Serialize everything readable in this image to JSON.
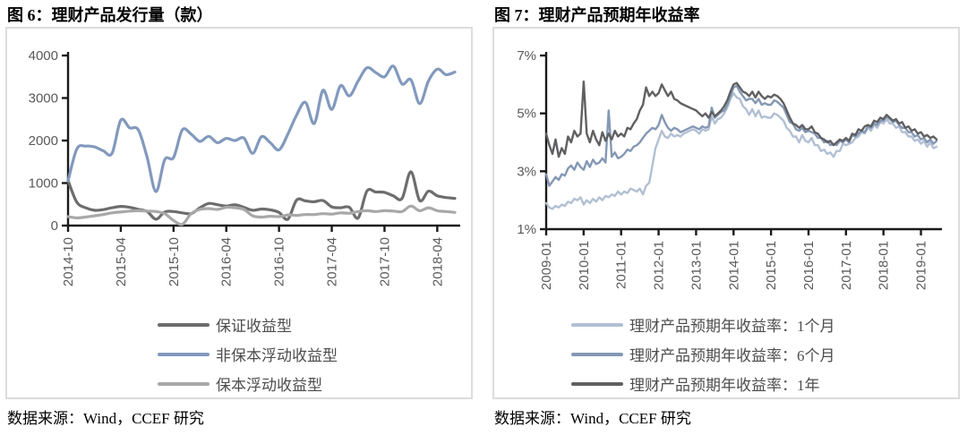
{
  "chart_data": [
    {
      "type": "line",
      "title": "图 6：理财产品发行量（款）",
      "source": "数据来源：Wind，CCEF 研究",
      "x_start": "2014-10",
      "x_tick_labels": [
        "2014-10",
        "2015-04",
        "2015-10",
        "2016-04",
        "2016-10",
        "2017-04",
        "2017-10",
        "2018-04"
      ],
      "x_tick_every": 6,
      "ylim": [
        0,
        4000
      ],
      "y_tick_values": [
        0,
        1000,
        2000,
        3000,
        4000
      ],
      "y_tick_labels": [
        "0",
        "1000",
        "2000",
        "3000",
        "4000"
      ],
      "grid": false,
      "legend_position": "bottom",
      "axis_color": "#1a1a1a",
      "tick_label_color": "#595959",
      "series": [
        {
          "name": "保证收益型",
          "color": "#6d6d6d",
          "values": [
            1060,
            550,
            420,
            360,
            375,
            420,
            450,
            430,
            380,
            330,
            150,
            320,
            330,
            300,
            280,
            420,
            520,
            490,
            460,
            490,
            430,
            360,
            390,
            370,
            310,
            150,
            600,
            580,
            560,
            590,
            440,
            420,
            430,
            180,
            810,
            790,
            780,
            700,
            640,
            1265,
            590,
            810,
            700,
            660,
            640
          ]
        },
        {
          "name": "非保本浮动收益型",
          "color": "#8299bd",
          "values": [
            1050,
            1800,
            1870,
            1850,
            1760,
            1700,
            2480,
            2300,
            2250,
            1600,
            800,
            1550,
            1600,
            2250,
            2150,
            1980,
            2100,
            1950,
            2050,
            2000,
            2060,
            1700,
            2090,
            1950,
            1780,
            2150,
            2600,
            2900,
            2400,
            3180,
            2730,
            3290,
            3050,
            3400,
            3710,
            3600,
            3500,
            3750,
            3330,
            3430,
            2870,
            3400,
            3680,
            3550,
            3610
          ]
        },
        {
          "name": "保本浮动收益型",
          "color": "#a8a8a8",
          "values": [
            210,
            180,
            200,
            230,
            260,
            300,
            320,
            340,
            350,
            340,
            330,
            280,
            120,
            30,
            280,
            380,
            400,
            380,
            430,
            420,
            380,
            230,
            200,
            220,
            210,
            250,
            240,
            260,
            260,
            280,
            270,
            300,
            290,
            330,
            350,
            330,
            350,
            340,
            330,
            460,
            350,
            420,
            350,
            330,
            310
          ]
        }
      ]
    },
    {
      "type": "line",
      "title": "图 7：理财产品预期年收益率",
      "source": "数据来源：Wind，CCEF 研究",
      "x_start": "2009-01",
      "x_tick_labels": [
        "2009-01",
        "2010-01",
        "2011-01",
        "2012-01",
        "2013-01",
        "2014-01",
        "2015-01",
        "2016-01",
        "2017-01",
        "2018-01",
        "2019-01"
      ],
      "x_tick_every": 12,
      "ylim": [
        1,
        7
      ],
      "y_tick_values": [
        1,
        3,
        5,
        7
      ],
      "y_tick_labels": [
        "1%",
        "3%",
        "5%",
        "7%"
      ],
      "grid": false,
      "legend_position": "bottom",
      "axis_color": "#1a1a1a",
      "tick_label_color": "#595959",
      "series": [
        {
          "name": "理财产品预期年收益率：1个月",
          "color": "#b2bfd3",
          "values": [
            1.9,
            1.75,
            1.7,
            1.8,
            1.75,
            1.85,
            1.8,
            1.95,
            1.9,
            2.05,
            2.0,
            2.1,
            1.85,
            2.0,
            1.9,
            2.05,
            1.95,
            2.1,
            2.0,
            2.15,
            2.1,
            2.2,
            2.15,
            2.3,
            2.2,
            2.3,
            2.25,
            2.4,
            2.35,
            2.3,
            2.4,
            2.2,
            2.5,
            2.6,
            3.2,
            3.8,
            4.1,
            4.4,
            4.2,
            4.15,
            4.3,
            4.2,
            4.25,
            4.2,
            4.3,
            4.35,
            4.4,
            4.45,
            4.4,
            4.3,
            4.45,
            4.4,
            4.45,
            4.9,
            4.65,
            4.8,
            4.85,
            5.0,
            5.2,
            5.5,
            5.7,
            5.55,
            5.5,
            5.25,
            5.15,
            4.95,
            5.15,
            4.9,
            5.1,
            4.85,
            4.9,
            4.85,
            4.85,
            5.0,
            4.95,
            4.85,
            4.75,
            4.5,
            4.4,
            4.2,
            4.2,
            4.0,
            4.25,
            4.05,
            4.0,
            4.15,
            3.9,
            3.9,
            3.7,
            3.75,
            3.6,
            3.65,
            3.5,
            3.7,
            3.7,
            3.95,
            3.9,
            3.95,
            4.0,
            4.15,
            4.2,
            4.35,
            4.3,
            4.5,
            4.4,
            4.6,
            4.5,
            4.7,
            4.65,
            4.8,
            4.65,
            4.65,
            4.5,
            4.55,
            4.35,
            4.35,
            4.2,
            4.2,
            4.05,
            4.1,
            3.95,
            4.05,
            3.85,
            4.0,
            3.8,
            3.85
          ]
        },
        {
          "name": "理财产品预期年收益率：6个月",
          "color": "#8498b4",
          "values": [
            2.9,
            2.5,
            2.65,
            2.8,
            2.7,
            2.9,
            2.85,
            3.1,
            3.2,
            3.05,
            3.3,
            3.15,
            3.05,
            3.35,
            3.15,
            3.4,
            3.25,
            3.3,
            3.45,
            3.3,
            5.1,
            3.5,
            3.65,
            3.45,
            3.5,
            3.6,
            3.75,
            3.7,
            3.85,
            3.9,
            4.0,
            4.15,
            4.3,
            4.4,
            4.5,
            4.45,
            4.6,
            4.95,
            4.7,
            4.5,
            4.4,
            4.5,
            4.45,
            4.35,
            4.4,
            4.45,
            4.5,
            4.55,
            4.5,
            4.45,
            4.55,
            4.5,
            4.55,
            5.2,
            4.85,
            4.95,
            5.05,
            5.1,
            5.3,
            5.6,
            5.9,
            5.95,
            5.75,
            5.6,
            5.45,
            5.5,
            5.5,
            5.35,
            5.5,
            5.3,
            5.35,
            5.3,
            5.3,
            5.45,
            5.4,
            5.3,
            5.2,
            4.95,
            4.7,
            4.65,
            4.45,
            4.4,
            4.5,
            4.35,
            4.4,
            4.35,
            4.3,
            4.15,
            4.15,
            4.0,
            4.05,
            3.9,
            3.95,
            3.9,
            4.05,
            4.0,
            4.1,
            4.0,
            4.25,
            4.2,
            4.3,
            4.4,
            4.35,
            4.55,
            4.5,
            4.65,
            4.6,
            4.75,
            4.75,
            4.9,
            4.8,
            4.7,
            4.75,
            4.6,
            4.5,
            4.5,
            4.35,
            4.35,
            4.2,
            4.25,
            4.1,
            4.15,
            4.0,
            4.1,
            3.95,
            4.05
          ]
        },
        {
          "name": "理财产品预期年收益率：1年",
          "color": "#606062",
          "values": [
            4.3,
            3.9,
            3.6,
            4.1,
            3.5,
            3.8,
            3.6,
            4.2,
            4.0,
            4.4,
            4.2,
            4.3,
            6.1,
            4.3,
            4.0,
            4.4,
            4.1,
            3.9,
            4.35,
            4.05,
            4.3,
            4.1,
            4.4,
            4.2,
            4.3,
            4.2,
            4.5,
            4.45,
            4.65,
            4.8,
            5.1,
            5.3,
            5.9,
            5.6,
            5.75,
            5.6,
            5.7,
            6.0,
            5.8,
            5.6,
            5.75,
            5.5,
            5.45,
            5.35,
            5.3,
            5.25,
            5.2,
            5.15,
            5.1,
            5.0,
            4.9,
            5.0,
            4.85,
            5.05,
            4.9,
            5.0,
            5.1,
            5.25,
            5.45,
            5.75,
            6.0,
            6.05,
            5.9,
            5.75,
            5.7,
            5.6,
            5.75,
            5.55,
            5.75,
            5.6,
            5.5,
            5.6,
            5.55,
            5.65,
            5.6,
            5.5,
            5.35,
            5.1,
            4.85,
            4.65,
            4.6,
            4.5,
            4.6,
            4.45,
            4.45,
            4.55,
            4.35,
            4.3,
            4.15,
            4.1,
            4.0,
            4.05,
            3.9,
            4.0,
            4.1,
            4.05,
            4.15,
            4.05,
            4.3,
            4.25,
            4.45,
            4.4,
            4.55,
            4.6,
            4.55,
            4.75,
            4.7,
            4.85,
            4.8,
            4.95,
            4.85,
            4.75,
            4.8,
            4.65,
            4.7,
            4.5,
            4.55,
            4.4,
            4.45,
            4.3,
            4.35,
            4.2,
            4.25,
            4.15,
            4.2,
            4.1
          ]
        }
      ]
    }
  ]
}
